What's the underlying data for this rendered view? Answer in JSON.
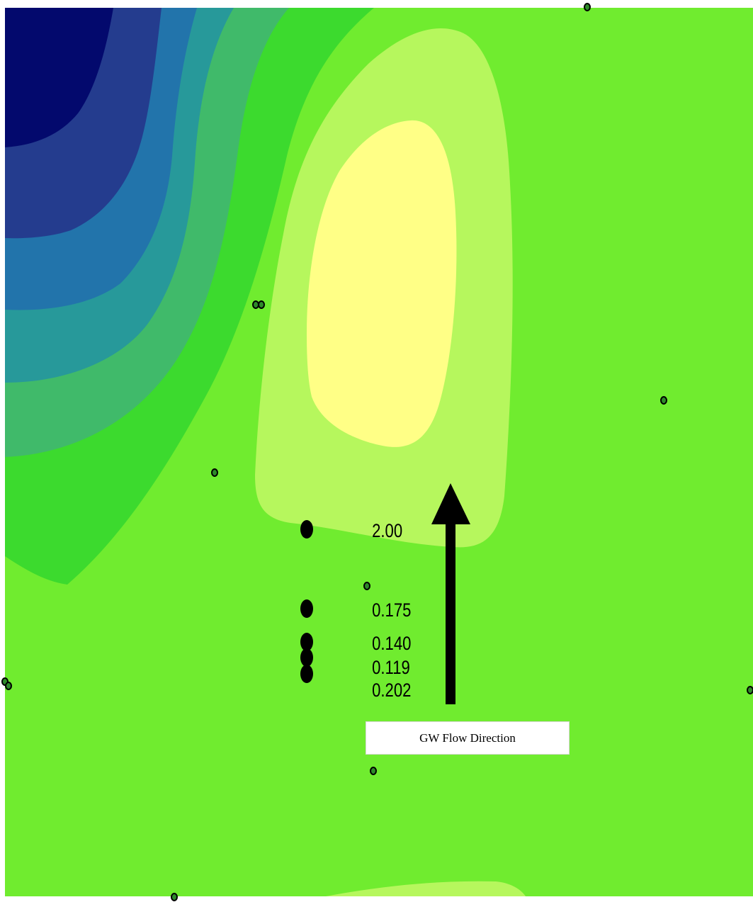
{
  "map": {
    "colors": {
      "background": "#ffffff",
      "base_zone": "#70ec2f",
      "zone_dark_green": "#3cda2e",
      "zone_light_green": "#b6f75d",
      "zone_yellow": "#ffff86",
      "zone_sea_green": "#40ba6a",
      "zone_teal": "#27999a",
      "zone_blue": "#2274ab",
      "zone_indigo": "#243c8e",
      "zone_navy": "#03096d",
      "well_fill": "#2e8a2a",
      "well_stroke": "#000000",
      "sample_point": "#000000",
      "arrow": "#000000"
    },
    "sample_labels": [
      "2.00",
      "0.175",
      "0.140",
      "0.119",
      "0.202"
    ],
    "flow_arrow": {
      "label": "GW Flow Direction",
      "direction": "north"
    }
  }
}
